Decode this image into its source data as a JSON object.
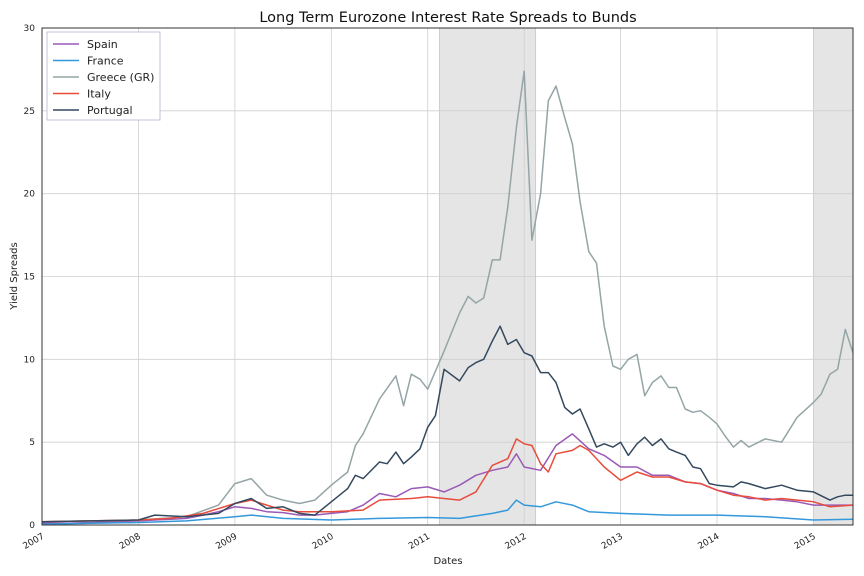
{
  "chart_data": {
    "type": "line",
    "title": "Long Term Eurozone Interest Rate Spreads to Bunds",
    "xlabel": "Dates",
    "ylabel": "Yield Spreads",
    "xlim": [
      2007.0,
      2015.41
    ],
    "ylim": [
      0,
      30
    ],
    "xticks": [
      2007,
      2008,
      2009,
      2010,
      2011,
      2012,
      2013,
      2014,
      2015
    ],
    "xtick_labels": [
      "2007",
      "2008",
      "2009",
      "2010",
      "2011",
      "2012",
      "2013",
      "2014",
      "2015"
    ],
    "yticks": [
      0,
      5,
      10,
      15,
      20,
      25,
      30
    ],
    "ytick_labels": [
      "0",
      "5",
      "10",
      "15",
      "20",
      "25",
      "30"
    ],
    "grid": true,
    "legend_position": "top-left",
    "shaded_periods": [
      [
        2011.12,
        2012.12
      ],
      [
        2015.0,
        2015.41
      ]
    ],
    "series": [
      {
        "name": "Spain",
        "color": "#9b59b6",
        "x": [
          2007.0,
          2007.25,
          2007.5,
          2007.75,
          2008.0,
          2008.17,
          2008.33,
          2008.5,
          2008.67,
          2008.83,
          2009.0,
          2009.17,
          2009.33,
          2009.5,
          2009.67,
          2009.83,
          2010.0,
          2010.17,
          2010.33,
          2010.5,
          2010.67,
          2010.83,
          2011.0,
          2011.17,
          2011.33,
          2011.5,
          2011.67,
          2011.83,
          2011.92,
          2012.0,
          2012.17,
          2012.33,
          2012.5,
          2012.67,
          2012.83,
          2013.0,
          2013.17,
          2013.33,
          2013.5,
          2013.67,
          2013.83,
          2014.0,
          2014.17,
          2014.33,
          2014.5,
          2014.67,
          2014.83,
          2015.0,
          2015.17,
          2015.41
        ],
        "values": [
          0.1,
          0.1,
          0.15,
          0.2,
          0.25,
          0.3,
          0.35,
          0.4,
          0.6,
          0.8,
          1.1,
          1.0,
          0.8,
          0.75,
          0.6,
          0.6,
          0.7,
          0.8,
          1.2,
          1.9,
          1.7,
          2.2,
          2.3,
          2.0,
          2.4,
          3.0,
          3.3,
          3.5,
          4.3,
          3.5,
          3.3,
          4.8,
          5.5,
          4.6,
          4.2,
          3.5,
          3.5,
          3.0,
          3.0,
          2.6,
          2.5,
          2.1,
          1.9,
          1.6,
          1.6,
          1.5,
          1.4,
          1.2,
          1.2,
          1.2
        ]
      },
      {
        "name": "France",
        "color": "#3498db",
        "x": [
          2007.0,
          2007.5,
          2008.0,
          2008.5,
          2009.0,
          2009.17,
          2009.5,
          2010.0,
          2010.5,
          2011.0,
          2011.33,
          2011.67,
          2011.83,
          2011.92,
          2012.0,
          2012.17,
          2012.33,
          2012.5,
          2012.67,
          2013.0,
          2013.5,
          2014.0,
          2014.5,
          2015.0,
          2015.41
        ],
        "values": [
          0.05,
          0.1,
          0.15,
          0.25,
          0.5,
          0.6,
          0.4,
          0.3,
          0.4,
          0.45,
          0.4,
          0.7,
          0.9,
          1.5,
          1.2,
          1.1,
          1.4,
          1.2,
          0.8,
          0.7,
          0.6,
          0.6,
          0.5,
          0.3,
          0.35
        ]
      },
      {
        "name": "Greece (GR)",
        "color": "#95a5a6",
        "x": [
          2007.0,
          2007.5,
          2008.0,
          2008.5,
          2008.83,
          2009.0,
          2009.17,
          2009.33,
          2009.5,
          2009.67,
          2009.83,
          2010.0,
          2010.17,
          2010.25,
          2010.33,
          2010.5,
          2010.67,
          2010.75,
          2010.83,
          2010.92,
          2011.0,
          2011.17,
          2011.33,
          2011.42,
          2011.5,
          2011.58,
          2011.67,
          2011.75,
          2011.83,
          2011.92,
          2012.0,
          2012.08,
          2012.17,
          2012.25,
          2012.33,
          2012.42,
          2012.5,
          2012.58,
          2012.67,
          2012.75,
          2012.83,
          2012.92,
          2013.0,
          2013.08,
          2013.17,
          2013.25,
          2013.33,
          2013.42,
          2013.5,
          2013.58,
          2013.67,
          2013.75,
          2013.83,
          2013.92,
          2014.0,
          2014.08,
          2014.17,
          2014.25,
          2014.33,
          2014.5,
          2014.67,
          2014.83,
          2015.0,
          2015.08,
          2015.17,
          2015.25,
          2015.33,
          2015.41
        ],
        "values": [
          0.2,
          0.25,
          0.3,
          0.5,
          1.2,
          2.5,
          2.8,
          1.8,
          1.5,
          1.3,
          1.5,
          2.4,
          3.2,
          4.8,
          5.5,
          7.6,
          9.0,
          7.2,
          9.1,
          8.8,
          8.2,
          10.5,
          12.8,
          13.8,
          13.4,
          13.7,
          16.0,
          16.0,
          19.2,
          24.0,
          27.4,
          17.2,
          20.0,
          25.6,
          26.5,
          24.6,
          23.0,
          19.5,
          16.5,
          15.8,
          12.0,
          9.6,
          9.4,
          10.0,
          10.3,
          7.8,
          8.6,
          9.0,
          8.3,
          8.3,
          7.0,
          6.8,
          6.9,
          6.5,
          6.1,
          5.4,
          4.7,
          5.1,
          4.7,
          5.2,
          5.0,
          6.5,
          7.4,
          7.9,
          9.1,
          9.4,
          11.8,
          10.4
        ]
      },
      {
        "name": "Italy",
        "color": "#e74c3c",
        "x": [
          2007.0,
          2007.5,
          2008.0,
          2008.33,
          2008.67,
          2009.0,
          2009.17,
          2009.33,
          2009.5,
          2009.67,
          2009.83,
          2010.0,
          2010.33,
          2010.5,
          2010.83,
          2011.0,
          2011.17,
          2011.33,
          2011.5,
          2011.67,
          2011.83,
          2011.92,
          2012.0,
          2012.08,
          2012.17,
          2012.25,
          2012.33,
          2012.5,
          2012.58,
          2012.67,
          2012.83,
          2013.0,
          2013.17,
          2013.33,
          2013.5,
          2013.67,
          2013.83,
          2014.0,
          2014.17,
          2014.33,
          2014.5,
          2014.67,
          2014.83,
          2015.0,
          2015.17,
          2015.41
        ],
        "values": [
          0.2,
          0.25,
          0.3,
          0.4,
          0.7,
          1.3,
          1.5,
          1.2,
          0.9,
          0.8,
          0.8,
          0.8,
          0.9,
          1.5,
          1.6,
          1.7,
          1.6,
          1.5,
          2.0,
          3.6,
          4.0,
          5.2,
          4.9,
          4.8,
          3.7,
          3.2,
          4.3,
          4.5,
          4.8,
          4.5,
          3.5,
          2.7,
          3.2,
          2.9,
          2.9,
          2.6,
          2.5,
          2.1,
          1.8,
          1.7,
          1.5,
          1.6,
          1.5,
          1.4,
          1.1,
          1.2
        ]
      },
      {
        "name": "Portugal",
        "color": "#34495e",
        "x": [
          2007.0,
          2007.5,
          2008.0,
          2008.17,
          2008.5,
          2008.83,
          2009.0,
          2009.17,
          2009.33,
          2009.5,
          2009.67,
          2009.83,
          2010.0,
          2010.17,
          2010.25,
          2010.33,
          2010.5,
          2010.58,
          2010.67,
          2010.75,
          2010.83,
          2010.92,
          2011.0,
          2011.08,
          2011.17,
          2011.33,
          2011.42,
          2011.5,
          2011.58,
          2011.67,
          2011.75,
          2011.83,
          2011.92,
          2012.0,
          2012.08,
          2012.17,
          2012.25,
          2012.33,
          2012.42,
          2012.5,
          2012.58,
          2012.67,
          2012.75,
          2012.83,
          2012.92,
          2013.0,
          2013.08,
          2013.17,
          2013.25,
          2013.33,
          2013.42,
          2013.5,
          2013.58,
          2013.67,
          2013.75,
          2013.83,
          2013.92,
          2014.0,
          2014.17,
          2014.25,
          2014.33,
          2014.5,
          2014.67,
          2014.83,
          2015.0,
          2015.17,
          2015.25,
          2015.33,
          2015.41
        ],
        "values": [
          0.2,
          0.25,
          0.3,
          0.6,
          0.5,
          0.7,
          1.3,
          1.6,
          1.0,
          1.1,
          0.7,
          0.6,
          1.4,
          2.2,
          3.0,
          2.8,
          3.8,
          3.7,
          4.4,
          3.7,
          4.1,
          4.6,
          5.9,
          6.6,
          9.4,
          8.7,
          9.5,
          9.8,
          10.0,
          11.1,
          12.0,
          10.9,
          11.2,
          10.4,
          10.2,
          9.2,
          9.2,
          8.6,
          7.1,
          6.7,
          7.0,
          5.8,
          4.7,
          4.9,
          4.7,
          5.0,
          4.2,
          4.9,
          5.3,
          4.8,
          5.2,
          4.6,
          4.4,
          4.2,
          3.5,
          3.4,
          2.5,
          2.4,
          2.3,
          2.6,
          2.5,
          2.2,
          2.4,
          2.1,
          2.0,
          1.5,
          1.7,
          1.8,
          1.8
        ]
      }
    ]
  }
}
